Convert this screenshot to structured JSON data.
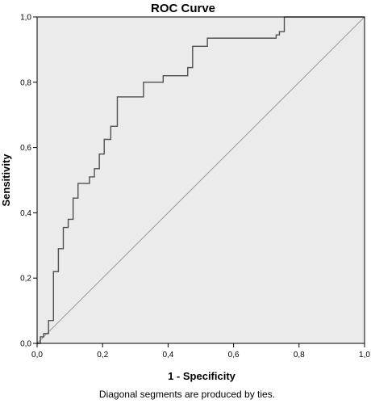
{
  "chart_data": {
    "type": "line",
    "title": "ROC Curve",
    "xlabel": "1 - Specificity",
    "ylabel": "Sensitivity",
    "footnote": "Diagonal segments are produced by ties.",
    "xlim": [
      0,
      1
    ],
    "ylim": [
      0,
      1
    ],
    "x_ticks": [
      "0,0",
      "0,2",
      "0,4",
      "0,6",
      "0,8",
      "1,0"
    ],
    "y_ticks": [
      "0,0",
      "0,2",
      "0,4",
      "0,6",
      "0,8",
      "1,0"
    ],
    "tick_values": [
      0,
      0.2,
      0.4,
      0.6,
      0.8,
      1
    ],
    "grid": false,
    "legend": "none",
    "plot_background": "#ebebeb",
    "curve_color": "#505050",
    "reference_color": "#9a9a9a",
    "series": [
      {
        "x": [
          0,
          0.01,
          0.01,
          0.02,
          0.02,
          0.035,
          0.035,
          0.05,
          0.05,
          0.065,
          0.065,
          0.08,
          0.08,
          0.095,
          0.095,
          0.11,
          0.11,
          0.125,
          0.125,
          0.16,
          0.16,
          0.175,
          0.175,
          0.19,
          0.19,
          0.205,
          0.205,
          0.225,
          0.225,
          0.245,
          0.245,
          0.325,
          0.325,
          0.385,
          0.385,
          0.46,
          0.46,
          0.475,
          0.475,
          0.52,
          0.52,
          0.73,
          0.73,
          0.74,
          0.74,
          0.755,
          0.755,
          1
        ],
        "y": [
          0,
          0,
          0.02,
          0.02,
          0.03,
          0.03,
          0.07,
          0.07,
          0.22,
          0.22,
          0.29,
          0.29,
          0.355,
          0.355,
          0.38,
          0.38,
          0.445,
          0.445,
          0.49,
          0.49,
          0.51,
          0.51,
          0.535,
          0.535,
          0.58,
          0.58,
          0.625,
          0.625,
          0.665,
          0.665,
          0.755,
          0.755,
          0.8,
          0.8,
          0.82,
          0.82,
          0.845,
          0.845,
          0.91,
          0.91,
          0.935,
          0.935,
          0.945,
          0.945,
          0.955,
          0.955,
          1,
          1
        ]
      },
      {
        "x": [
          0,
          1
        ],
        "y": [
          0,
          1
        ]
      }
    ]
  }
}
